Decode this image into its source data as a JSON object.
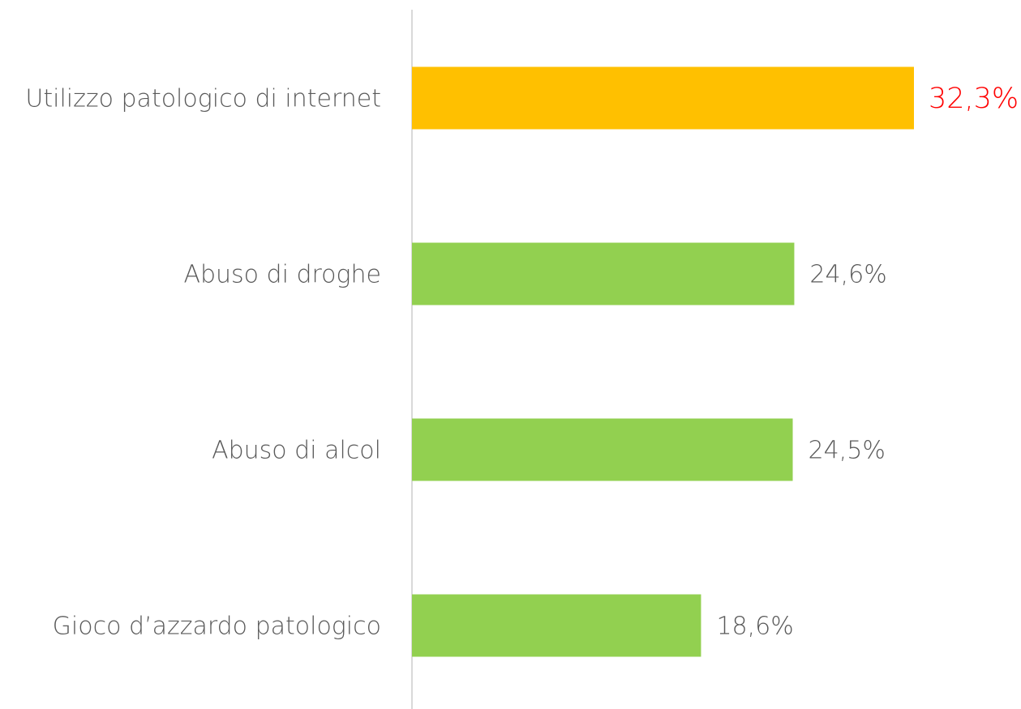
{
  "chart_data": {
    "type": "hbar",
    "categories": [
      "Utilizzo patologico di internet",
      "Abuso di droghe",
      "Abuso di alcol",
      "Gioco d’azzardo patologico"
    ],
    "values": [
      32.3,
      24.6,
      24.5,
      18.6
    ],
    "value_labels": [
      "32,3%",
      "24,6%",
      "24,5%",
      "18,6%"
    ],
    "colors": [
      "#ffc000",
      "#92d050",
      "#92d050",
      "#92d050"
    ],
    "label_colors": [
      "#ff0000",
      "#595959",
      "#595959",
      "#595959"
    ]
  }
}
